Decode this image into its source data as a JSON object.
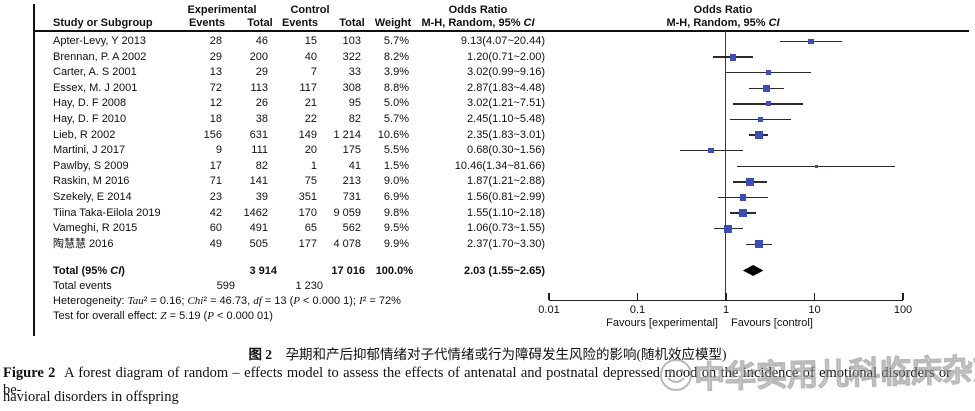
{
  "colors": {
    "marker_blue": "#3a4db8",
    "ci_line": "#2b2b2b",
    "diamond": "#000000",
    "rule": "#111111",
    "watermark_gray": "#8f8f8f"
  },
  "header": {
    "experimental": "Experimental",
    "control": "Control",
    "odds_ratio": "Odds Ratio",
    "study_or_subgroup": "Study or Subgroup",
    "events": "Events",
    "total": "Total",
    "weight": "Weight",
    "mh_random_runs": [
      {
        "t": "M-H, Random, 95% "
      },
      {
        "t": "CI",
        "i": 1
      }
    ]
  },
  "chart_data": {
    "type": "scatter",
    "subtype": "forest-plot-odds-ratio",
    "title": "Odds Ratio",
    "subtitle": "M-H, Random, 95% CI",
    "x_scale": "log10",
    "xlim": [
      0.01,
      100
    ],
    "x_ticks": [
      0.01,
      0.1,
      1,
      10,
      100
    ],
    "favours_left": "Favours [experimental]",
    "favours_right": "Favours [control]",
    "studies": [
      {
        "study": "Apter-Levy, Y 2013",
        "exp_events": "28",
        "exp_total": "46",
        "ctrl_events": "15",
        "ctrl_total": "103",
        "weight": "5.7%",
        "weight_pct": 5.7,
        "or_text": "9.13(4.07~20.44)",
        "or": 9.13,
        "ci_low": 4.07,
        "ci_high": 20.44
      },
      {
        "study": "Brennan, P. A 2002",
        "exp_events": "29",
        "exp_total": "200",
        "ctrl_events": "40",
        "ctrl_total": "322",
        "weight": "8.2%",
        "weight_pct": 8.2,
        "or_text": "1.20(0.71~2.00)",
        "or": 1.2,
        "ci_low": 0.71,
        "ci_high": 2.0
      },
      {
        "study": "Carter, A. S 2001",
        "exp_events": "13",
        "exp_total": "29",
        "ctrl_events": "7",
        "ctrl_total": "33",
        "weight": "3.9%",
        "weight_pct": 3.9,
        "or_text": "3.02(0.99~9.16)",
        "or": 3.02,
        "ci_low": 0.99,
        "ci_high": 9.16
      },
      {
        "study": "Essex, M. J 2001",
        "exp_events": "72",
        "exp_total": "113",
        "ctrl_events": "117",
        "ctrl_total": "308",
        "weight": "8.8%",
        "weight_pct": 8.8,
        "or_text": "2.87(1.83~4.48)",
        "or": 2.87,
        "ci_low": 1.83,
        "ci_high": 4.48
      },
      {
        "study": "Hay, D. F 2008",
        "exp_events": "12",
        "exp_total": "26",
        "ctrl_events": "21",
        "ctrl_total": "95",
        "weight": "5.0%",
        "weight_pct": 5.0,
        "or_text": "3.02(1.21~7.51)",
        "or": 3.02,
        "ci_low": 1.21,
        "ci_high": 7.51
      },
      {
        "study": "Hay, D. F 2010",
        "exp_events": "18",
        "exp_total": "38",
        "ctrl_events": "22",
        "ctrl_total": "82",
        "weight": "5.7%",
        "weight_pct": 5.7,
        "or_text": "2.45(1.10~5.48)",
        "or": 2.45,
        "ci_low": 1.1,
        "ci_high": 5.48
      },
      {
        "study": "Lieb, R 2002",
        "exp_events": "156",
        "exp_total": "631",
        "ctrl_events": "149",
        "ctrl_total": "1 214",
        "weight": "10.6%",
        "weight_pct": 10.6,
        "or_text": "2.35(1.83~3.01)",
        "or": 2.35,
        "ci_low": 1.83,
        "ci_high": 3.01
      },
      {
        "study": "Martini, J 2017",
        "exp_events": "9",
        "exp_total": "111",
        "ctrl_events": "20",
        "ctrl_total": "175",
        "weight": "5.5%",
        "weight_pct": 5.5,
        "or_text": "0.68(0.30~1.56)",
        "or": 0.68,
        "ci_low": 0.3,
        "ci_high": 1.56
      },
      {
        "study": "Pawlby, S 2009",
        "exp_events": "17",
        "exp_total": "82",
        "ctrl_events": "1",
        "ctrl_total": "41",
        "weight": "1.5%",
        "weight_pct": 1.5,
        "or_text": "10.46(1.34~81.66)",
        "or": 10.46,
        "ci_low": 1.34,
        "ci_high": 81.66
      },
      {
        "study": "Raskin, M 2016",
        "exp_events": "71",
        "exp_total": "141",
        "ctrl_events": "75",
        "ctrl_total": "213",
        "weight": "9.0%",
        "weight_pct": 9.0,
        "or_text": "1.87(1.21~2.88)",
        "or": 1.87,
        "ci_low": 1.21,
        "ci_high": 2.88
      },
      {
        "study": "Szekely, E 2014",
        "exp_events": "23",
        "exp_total": "39",
        "ctrl_events": "351",
        "ctrl_total": "731",
        "weight": "6.9%",
        "weight_pct": 6.9,
        "or_text": "1.56(0.81~2.99)",
        "or": 1.56,
        "ci_low": 0.81,
        "ci_high": 2.99
      },
      {
        "study": "Tiina Taka-Eilola 2019",
        "exp_events": "42",
        "exp_total": "1462",
        "ctrl_events": "170",
        "ctrl_total": "9 059",
        "weight": "9.8%",
        "weight_pct": 9.8,
        "or_text": "1.55(1.10~2.18)",
        "or": 1.55,
        "ci_low": 1.1,
        "ci_high": 2.18
      },
      {
        "study": "Vameghi, R 2015",
        "exp_events": "60",
        "exp_total": "491",
        "ctrl_events": "65",
        "ctrl_total": "562",
        "weight": "9.5%",
        "weight_pct": 9.5,
        "or_text": "1.06(0.73~1.55)",
        "or": 1.06,
        "ci_low": 0.73,
        "ci_high": 1.55
      },
      {
        "study": "陶慧慧 2016",
        "exp_events": "49",
        "exp_total": "505",
        "ctrl_events": "177",
        "ctrl_total": "4 078",
        "weight": "9.9%",
        "weight_pct": 9.9,
        "or_text": "2.37(1.70~3.30)",
        "or": 2.37,
        "ci_low": 1.7,
        "ci_high": 3.3
      }
    ],
    "total": {
      "label_runs": [
        {
          "t": "Total (95% "
        },
        {
          "t": "CI",
          "i": 1
        },
        {
          "t": ")"
        }
      ],
      "exp_total": "3 914",
      "ctrl_total": "17 016",
      "weight": "100.0%",
      "or_text": "2.03 (1.55~2.65)",
      "or": 2.03,
      "ci_low": 1.55,
      "ci_high": 2.65
    },
    "total_events": {
      "label": "Total events",
      "exp": "599",
      "ctrl": "1 230"
    },
    "heterogeneity_runs": [
      {
        "t": "Heterogeneity: "
      },
      {
        "t": "Tau",
        "i": 1
      },
      {
        "t": "² = 0.16; "
      },
      {
        "t": "Chi",
        "i": 1
      },
      {
        "t": "² = 46.73, "
      },
      {
        "t": "df",
        "i": 1
      },
      {
        "t": " = 13 ("
      },
      {
        "t": "P",
        "i": 1
      },
      {
        "t": " < 0.000 1); "
      },
      {
        "t": "I",
        "i": 1
      },
      {
        "t": "² = 72%"
      }
    ],
    "overall_effect_runs": [
      {
        "t": "Test for overall effect: "
      },
      {
        "t": "Z",
        "i": 1
      },
      {
        "t": " = 5.19 ("
      },
      {
        "t": "P",
        "i": 1
      },
      {
        "t": " < 0.000 01)"
      }
    ]
  },
  "caption": {
    "zh_label": "图 2",
    "zh_text": "孕期和产后抑郁情绪对子代情绪或行为障碍发生风险的影响(随机效应模型)",
    "en_label": "Figure 2",
    "en_line1": "A forest diagram of random – effects model to assess the effects of antenatal and postnatal depressed mood on the incidence of emotional disorders or be-",
    "en_line2": "havioral disorders in offspring"
  },
  "watermark": {
    "text": "中华实用儿科临床杂志",
    "logo": "smiley-face-journal-logo"
  }
}
